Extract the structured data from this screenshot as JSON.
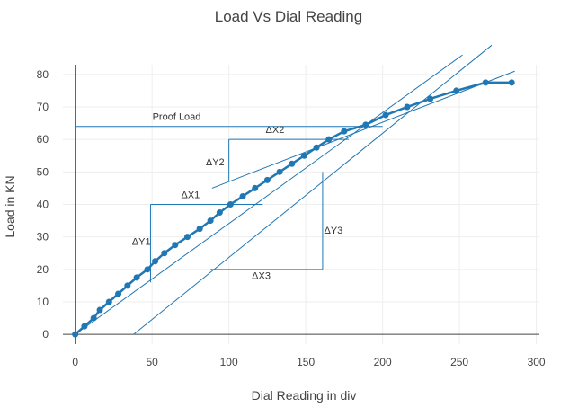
{
  "chart_data": {
    "type": "line",
    "title": "Load Vs Dial Reading",
    "xlabel": "Dial Reading in div",
    "ylabel": "Load in KN",
    "xlim": [
      -8,
      302
    ],
    "ylim": [
      -3,
      83
    ],
    "xticks": [
      0,
      50,
      100,
      150,
      200,
      250,
      300
    ],
    "yticks": [
      0,
      10,
      20,
      30,
      40,
      50,
      60,
      70,
      80
    ],
    "grid": true,
    "series": [
      {
        "name": "",
        "x": [
          0,
          6,
          12,
          16,
          22,
          28,
          34,
          40,
          47,
          52,
          58,
          65,
          73,
          81,
          88,
          94,
          101,
          109,
          117,
          125,
          133,
          141,
          149,
          157,
          165,
          175,
          189,
          202,
          216,
          231,
          248,
          267,
          284
        ],
        "y": [
          0,
          2.5,
          5,
          7.5,
          10,
          12.5,
          15,
          17.5,
          20,
          22.5,
          25,
          27.5,
          30,
          32.5,
          35,
          37.5,
          40,
          42.5,
          45,
          47.5,
          50,
          52.5,
          55,
          57.5,
          60,
          62.5,
          64.5,
          67.5,
          70,
          72.5,
          75,
          77.5,
          77.5
        ]
      }
    ],
    "reference_lines": [
      {
        "x": [
          0,
          252
        ],
        "y": [
          0,
          86
        ]
      },
      {
        "x": [
          38,
          271
        ],
        "y": [
          0,
          89
        ]
      },
      {
        "x": [
          89,
          286
        ],
        "y": [
          45,
          81
        ]
      }
    ],
    "annotations": [
      {
        "text": "Proof Load",
        "x": 66,
        "y": 66
      },
      {
        "text": "ΔX1",
        "x": 75,
        "y": 42
      },
      {
        "text": "ΔY1",
        "x": 43,
        "y": 27.5
      },
      {
        "text": "ΔX2",
        "x": 130,
        "y": 62
      },
      {
        "text": "ΔY2",
        "x": 91,
        "y": 52
      },
      {
        "text": "ΔX3",
        "x": 121,
        "y": 17
      },
      {
        "text": "ΔY3",
        "x": 168,
        "y": 31
      }
    ]
  },
  "colors": {
    "series": "#1f77b4",
    "grid": "#eeeeee",
    "text": "#444444"
  }
}
